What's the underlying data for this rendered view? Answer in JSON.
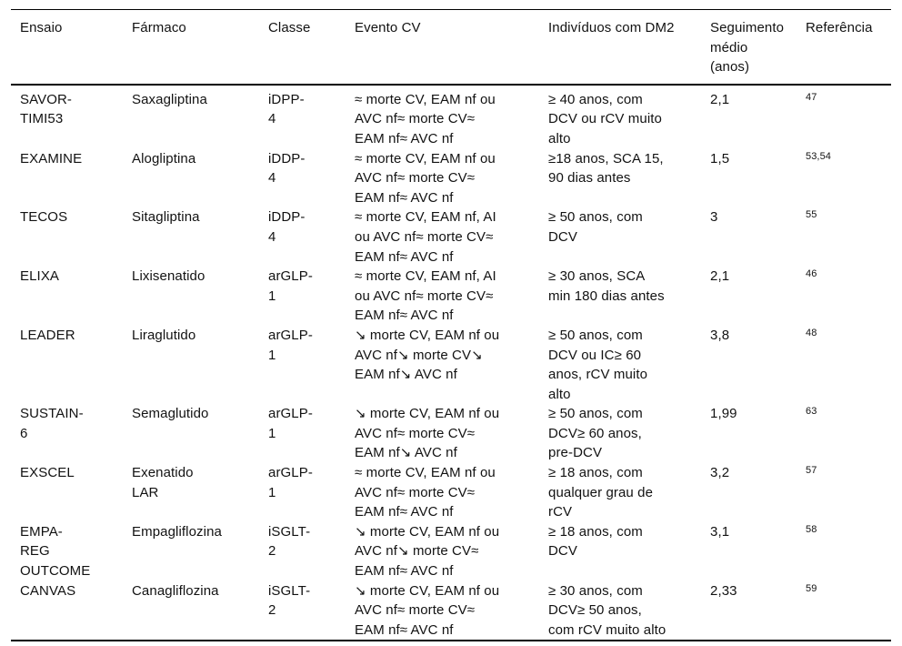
{
  "table": {
    "headers": [
      "Ensaio",
      "Fármaco",
      "Classe",
      "Evento CV",
      "Indivíduos com DM2",
      "Seguimento\nmédio\n(anos)",
      "Referência"
    ],
    "rows": [
      {
        "ensaio": "SAVOR-\nTIMI53",
        "farmaco": "Saxagliptina",
        "classe": "iDPP-\n4",
        "evento_cv": "≈ morte CV, EAM nf ou\nAVC nf≈ morte CV≈\nEAM nf≈ AVC nf",
        "individuos": "≥ 40 anos, com\nDCV ou rCV muito\nalto",
        "seguimento": "2,1",
        "referencia": "47"
      },
      {
        "ensaio": "EXAMINE",
        "farmaco": "Alogliptina",
        "classe": "iDDP-\n4",
        "evento_cv": "≈ morte CV, EAM nf ou\nAVC nf≈ morte CV≈\nEAM nf≈ AVC nf",
        "individuos": "≥18 anos, SCA 15,\n90 dias antes",
        "seguimento": "1,5",
        "referencia": "53,54"
      },
      {
        "ensaio": "TECOS",
        "farmaco": "Sitagliptina",
        "classe": "iDDP-\n4",
        "evento_cv": "≈ morte CV, EAM nf, AI\nou AVC nf≈ morte CV≈\nEAM nf≈ AVC nf",
        "individuos": "≥ 50 anos, com\nDCV",
        "seguimento": "3",
        "referencia": "55"
      },
      {
        "ensaio": "ELIXA",
        "farmaco": "Lixisenatido",
        "classe": "arGLP-\n1",
        "evento_cv": "≈ morte CV, EAM nf, AI\nou AVC nf≈ morte CV≈\nEAM nf≈ AVC nf",
        "individuos": "≥ 30 anos, SCA\nmin 180 dias antes",
        "seguimento": "2,1",
        "referencia": "46"
      },
      {
        "ensaio": "LEADER",
        "farmaco": "Liraglutido",
        "classe": "arGLP-\n1",
        "evento_cv": "↘ morte CV, EAM nf ou\nAVC nf↘ morte CV↘\nEAM nf↘ AVC nf",
        "individuos": "≥ 50 anos, com\nDCV ou IC≥ 60\nanos, rCV muito\nalto",
        "seguimento": "3,8",
        "referencia": "48"
      },
      {
        "ensaio": "SUSTAIN-\n6",
        "farmaco": "Semaglutido",
        "classe": "arGLP-\n1",
        "evento_cv": "↘ morte CV, EAM nf ou\nAVC nf≈ morte CV≈\nEAM nf↘ AVC nf",
        "individuos": "≥ 50 anos, com\nDCV≥ 60 anos,\npre-DCV",
        "seguimento": "1,99",
        "referencia": "63"
      },
      {
        "ensaio": "EXSCEL",
        "farmaco": "Exenatido\nLAR",
        "classe": "arGLP-\n1",
        "evento_cv": "≈ morte CV, EAM nf ou\nAVC nf≈ morte CV≈\nEAM nf≈ AVC nf",
        "individuos": "≥ 18 anos, com\nqualquer grau de\nrCV",
        "seguimento": "3,2",
        "referencia": "57"
      },
      {
        "ensaio": "EMPA-\nREG\nOUTCOME",
        "farmaco": "Empagliflozina",
        "classe": "iSGLT-\n2",
        "evento_cv": "↘ morte CV, EAM nf ou\nAVC nf↘ morte CV≈\nEAM nf≈ AVC nf",
        "individuos": "≥ 18 anos, com\nDCV",
        "seguimento": "3,1",
        "referencia": "58"
      },
      {
        "ensaio": "CANVAS",
        "farmaco": "Canagliflozina",
        "classe": "iSGLT-\n2",
        "evento_cv": "↘ morte CV, EAM nf ou\nAVC nf≈ morte CV≈\nEAM nf≈ AVC nf",
        "individuos": "≥ 30 anos, com\nDCV≥ 50 anos,\ncom rCV muito alto",
        "seguimento": "2,33",
        "referencia": "59"
      }
    ]
  },
  "colors": {
    "text": "#121212",
    "border": "#000000",
    "background": "#ffffff"
  }
}
